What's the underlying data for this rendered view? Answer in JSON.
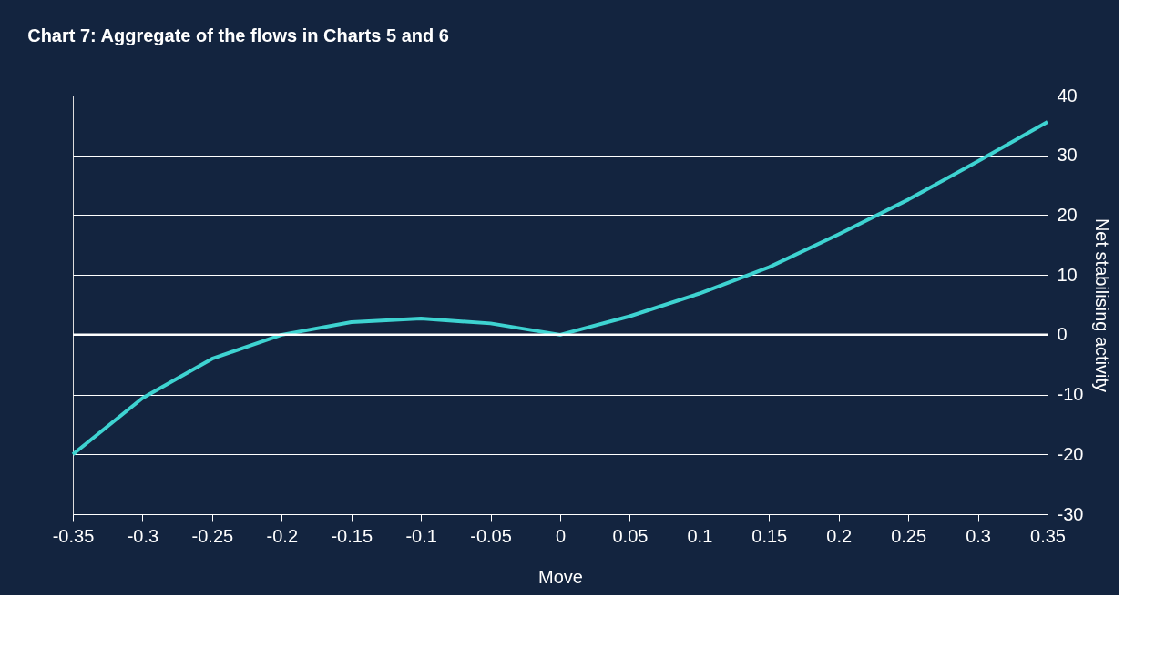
{
  "chart_data": {
    "type": "line",
    "title": "Chart 7: Aggregate of the flows in Charts 5 and 6",
    "xlabel": "Move",
    "ylabel": "Net stabilising activity",
    "x": [
      -0.35,
      -0.3,
      -0.25,
      -0.2,
      -0.15,
      -0.1,
      -0.05,
      0,
      0.05,
      0.1,
      0.15,
      0.2,
      0.25,
      0.3,
      0.35
    ],
    "series": [
      {
        "color": "#3ed3d1",
        "values": [
          -20,
          -10.6,
          -4,
          0,
          2.1,
          2.7,
          1.9,
          0,
          3.1,
          6.9,
          11.3,
          16.8,
          22.6,
          29,
          35.6
        ]
      }
    ],
    "xlim": [
      -0.35,
      0.35
    ],
    "xticks": [
      -0.35,
      -0.3,
      -0.25,
      -0.2,
      -0.15,
      -0.1,
      -0.05,
      0,
      0.05,
      0.1,
      0.15,
      0.2,
      0.25,
      0.3,
      0.35
    ],
    "ylim": [
      -30,
      40
    ],
    "yticks": [
      -30,
      -20,
      -10,
      0,
      10,
      20,
      30,
      40
    ],
    "ref_lines": [
      {
        "axis": "y",
        "value": 0,
        "color": "#ffffff"
      }
    ],
    "grid": "y",
    "marker": "none",
    "line_style": "solid"
  }
}
